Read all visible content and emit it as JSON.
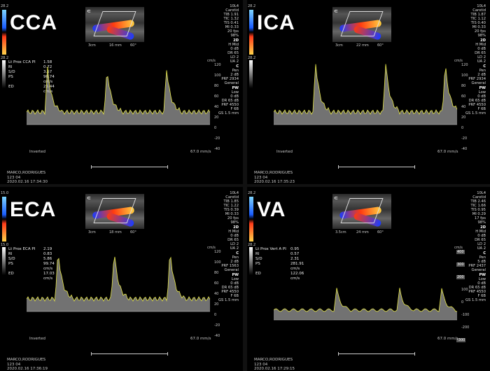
{
  "colors": {
    "trace": "#e6e64a",
    "spectrum": "#cfcfcf",
    "baseline": "#cccccc"
  },
  "panels": [
    {
      "id": "cca",
      "vessel": "CCA",
      "cbar_top": "28.2",
      "cbar_bot": "28.2",
      "bmode_scale": [
        "3cm",
        "16 mm",
        "60°"
      ],
      "params": [
        "10L4",
        "Carotid",
        "TIB 1.91",
        "TIC 1.32",
        "TIS 0.41",
        "MI 0.33",
        "20 fps",
        "98%"
      ],
      "params_2d": [
        "2D",
        "H Mid",
        "0 dB",
        "DR 65",
        "LD 2",
        "UA 2"
      ],
      "params_c": [
        "C",
        "Pen",
        "2 dB",
        "PRF 2934",
        "General"
      ],
      "params_pw": [
        "PW",
        "Low",
        "0 dB",
        "DR 65 dB",
        "PRF 4550",
        "F 6B",
        "GS 1.5 mm"
      ],
      "meas_title": "Lt Prox CCA PI",
      "meas": [
        {
          "k": "Lt Prox CCA PI",
          "v": "1.58"
        },
        {
          "k": "RI",
          "v": "0.72"
        },
        {
          "k": "S/D",
          "v": "3.57"
        },
        {
          "k": "PS",
          "v": "90.74 cm/s"
        },
        {
          "k": "ED",
          "v": "25.44 cm/s"
        }
      ],
      "axis": [
        "120",
        "100",
        "80",
        "60",
        "40",
        "20",
        "0",
        "-20",
        "-40"
      ],
      "axis_unit": "cm/s",
      "inverted": "Inverted",
      "speed": "67.0 mm/s",
      "footer": [
        "MARCO,RODRIGUES",
        "123 04",
        "2020.02.16 17:34:30"
      ]
    },
    {
      "id": "ica",
      "vessel": "ICA",
      "cbar_top": "28.2",
      "cbar_bot": "28.2",
      "bmode_scale": [
        "3cm",
        "22 mm",
        "60°"
      ],
      "params": [
        "10L4",
        "Carotid",
        "TIB 1.87",
        "TIC 1.12",
        "TIS 0.40",
        "MI 0.33",
        "20 fps",
        "98%"
      ],
      "params_2d": [
        "2D",
        "H Mid",
        "0 dB",
        "DR 65",
        "LD 2",
        "UA 2"
      ],
      "params_c": [
        "C",
        "Pen",
        "2 dB",
        "PRF 2934",
        "General"
      ],
      "params_pw": [
        "PW",
        "Low",
        "0 dB",
        "DR 65 dB",
        "PRF 4550",
        "F 6B",
        "GS 1.5 mm"
      ],
      "meas_title": "",
      "meas": [],
      "axis": [
        "120",
        "100",
        "80",
        "60",
        "40",
        "20",
        "0",
        "-20",
        "-40"
      ],
      "axis_unit": "cm/s",
      "inverted": "Inverted",
      "speed": "67.0 mm/s",
      "footer": [
        "MARCO,RODRIGUES",
        "123 04",
        "2020.02.16 17:35:23"
      ]
    },
    {
      "id": "eca",
      "vessel": "ECA",
      "cbar_top": "15.0",
      "cbar_bot": "15.0",
      "bmode_scale": [
        "3cm",
        "18 mm",
        "60°"
      ],
      "params": [
        "10L4",
        "Carotid",
        "TIB 1.85",
        "TIC 1.22",
        "TIS 0.39",
        "MI 0.33",
        "20 fps",
        "98%"
      ],
      "params_2d": [
        "2D",
        "H Mid",
        "0 dB",
        "DR 65",
        "LD 2",
        "UA 2"
      ],
      "params_c": [
        "C",
        "Pen",
        "2 dB",
        "PRF 1563",
        "General"
      ],
      "params_pw": [
        "PW",
        "Low",
        "0 dB",
        "DR 65 dB",
        "PRF 4550",
        "F 6B",
        "GS 1.5 mm"
      ],
      "meas_title": "Lt Prox ECA PI",
      "meas": [
        {
          "k": "Lt Prox ECA PI",
          "v": "2.19"
        },
        {
          "k": "RI",
          "v": "0.83"
        },
        {
          "k": "S/D",
          "v": "5.86"
        },
        {
          "k": "PS",
          "v": "99.74 cm/s"
        },
        {
          "k": "ED",
          "v": "17.03 cm/s"
        }
      ],
      "axis": [
        "120",
        "100",
        "80",
        "60",
        "40",
        "20",
        "0",
        "-20",
        "-40"
      ],
      "axis_unit": "cm/s",
      "inverted": "Inverted",
      "speed": "67.0 mm/s",
      "footer": [
        "MARCO,RODRIGUES",
        "123 04",
        "2020.02.16 17:36:19"
      ]
    },
    {
      "id": "va",
      "vessel": "VA",
      "cbar_top": "28.2",
      "cbar_bot": "28.2",
      "bmode_scale": [
        "3.5cm",
        "24 mm",
        "60°"
      ],
      "params": [
        "10L4",
        "Carotid",
        "TIB 2.46",
        "TIC 1.66",
        "TIS 0.95",
        "MI 0.29",
        "17 fps",
        "98%"
      ],
      "params_2d": [
        "2D",
        "H Mid",
        "0 dB",
        "DR 65",
        "LD 2",
        "UA 2"
      ],
      "params_c": [
        "C",
        "Pen",
        "5 dB",
        "PRF 2437",
        "General"
      ],
      "params_pw": [
        "PW",
        "Low",
        "0 dB",
        "DR 65 dB",
        "PRF 4550",
        "F 6B",
        "GS 1.5 mm"
      ],
      "meas_title": "Lt Prox Vert A PI",
      "meas": [
        {
          "k": "Lt Prox Vert A PI",
          "v": "0.95"
        },
        {
          "k": "RI",
          "v": "0.57"
        },
        {
          "k": "S/D",
          "v": "2.31"
        },
        {
          "k": "PS",
          "v": "281.91 cm/s"
        },
        {
          "k": "ED",
          "v": "122.06 cm/s"
        }
      ],
      "axis": [
        "400",
        "300",
        "200",
        "100",
        "0",
        "-100",
        "-200",
        "-300"
      ],
      "axis_unit": "cm/s",
      "inverted": "",
      "speed": "67.0 mm/s",
      "footer": [
        "MARCO,RODRIGUES",
        "123 04",
        "2020.02.16 17:29:15"
      ]
    }
  ]
}
